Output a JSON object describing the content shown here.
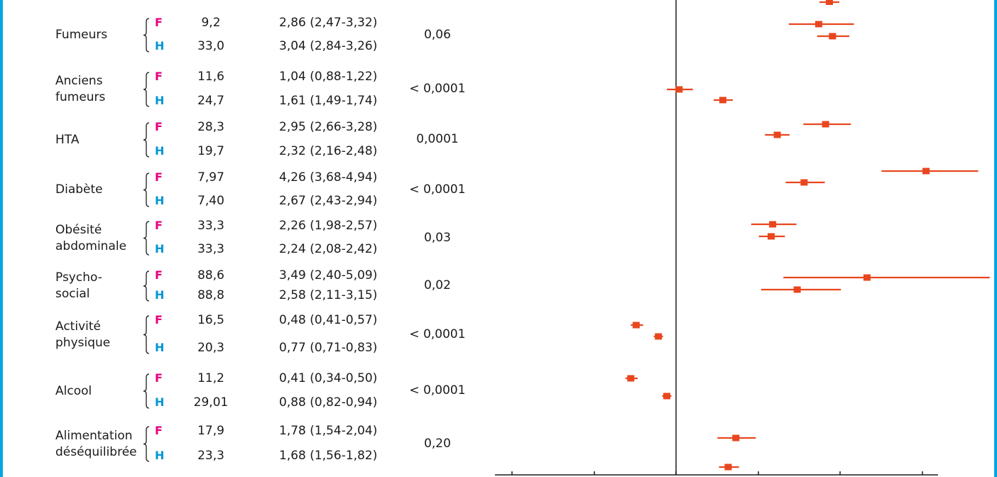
{
  "chart_data": {
    "type": "forest",
    "reference_line": 1,
    "axis_max": 3.5,
    "groups": [
      {
        "label_lines": [
          "Fumeurs"
        ],
        "p": "0,06",
        "rows": [
          {
            "sex": "F",
            "prev": "9,2",
            "or_text": "2,86 (2,47-3,32)",
            "or": 2.86,
            "lo": 2.47,
            "hi": 3.32
          },
          {
            "sex": "H",
            "prev": "33,0",
            "or_text": "3,04 (2,84-3,26)",
            "or": 3.04,
            "lo": 2.84,
            "hi": 3.26
          }
        ]
      },
      {
        "label_lines": [
          "Anciens",
          "fumeurs"
        ],
        "p": "< 0,0001",
        "rows": [
          {
            "sex": "F",
            "prev": "11,6",
            "or_text": "1,04 (0,88-1,22)",
            "or": 1.04,
            "lo": 0.88,
            "hi": 1.22
          },
          {
            "sex": "H",
            "prev": "24,7",
            "or_text": "1,61 (1,49-1,74)",
            "or": 1.61,
            "lo": 1.49,
            "hi": 1.74
          }
        ]
      },
      {
        "label_lines": [
          "HTA"
        ],
        "p": "0,0001",
        "rows": [
          {
            "sex": "F",
            "prev": "28,3",
            "or_text": "2,95 (2,66-3,28)",
            "or": 2.95,
            "lo": 2.66,
            "hi": 3.28
          },
          {
            "sex": "H",
            "prev": "19,7",
            "or_text": "2,32 (2,16-2,48)",
            "or": 2.32,
            "lo": 2.16,
            "hi": 2.48
          }
        ]
      },
      {
        "label_lines": [
          "Diabète"
        ],
        "p": "< 0,0001",
        "rows": [
          {
            "sex": "F",
            "prev": "7,97",
            "or_text": "4,26 (3,68-4,94)",
            "or": 4.26,
            "lo": 3.68,
            "hi": 4.94
          },
          {
            "sex": "H",
            "prev": "7,40",
            "or_text": "2,67 (2,43-2,94)",
            "or": 2.67,
            "lo": 2.43,
            "hi": 2.94
          }
        ]
      },
      {
        "label_lines": [
          "Obésité",
          "abdominale"
        ],
        "p": "0,03",
        "rows": [
          {
            "sex": "F",
            "prev": "33,3",
            "or_text": "2,26 (1,98-2,57)",
            "or": 2.26,
            "lo": 1.98,
            "hi": 2.57
          },
          {
            "sex": "H",
            "prev": "33,3",
            "or_text": "2,24 (2,08-2,42)",
            "or": 2.24,
            "lo": 2.08,
            "hi": 2.42
          }
        ]
      },
      {
        "label_lines": [
          "Psycho-",
          "social"
        ],
        "p": "0,02",
        "rows": [
          {
            "sex": "F",
            "prev": "88,6",
            "or_text": "3,49 (2,40-5,09)",
            "or": 3.49,
            "lo": 2.4,
            "hi": 5.09
          },
          {
            "sex": "H",
            "prev": "88,8",
            "or_text": "2,58 (2,11-3,15)",
            "or": 2.58,
            "lo": 2.11,
            "hi": 3.15
          }
        ]
      },
      {
        "label_lines": [
          "Activité",
          "physique"
        ],
        "p": "< 0,0001",
        "rows": [
          {
            "sex": "F",
            "prev": "16,5",
            "or_text": "0,48 (0,41-0,57)",
            "or": 0.48,
            "lo": 0.41,
            "hi": 0.57
          },
          {
            "sex": "H",
            "prev": "20,3",
            "or_text": "0,77 (0,71-0,83)",
            "or": 0.77,
            "lo": 0.71,
            "hi": 0.83
          }
        ]
      },
      {
        "label_lines": [
          "Alcool"
        ],
        "p": "< 0,0001",
        "rows": [
          {
            "sex": "F",
            "prev": "11,2",
            "or_text": "0,41 (0,34-0,50)",
            "or": 0.41,
            "lo": 0.34,
            "hi": 0.5
          },
          {
            "sex": "H",
            "prev": "29,01",
            "or_text": "0,88 (0,82-0,94)",
            "or": 0.88,
            "lo": 0.82,
            "hi": 0.94
          }
        ]
      },
      {
        "label_lines": [
          "Alimentation",
          "déséquilibrée"
        ],
        "p": "0,20",
        "rows": [
          {
            "sex": "F",
            "prev": "17,9",
            "or_text": "1,78 (1,54-2,04)",
            "or": 1.78,
            "lo": 1.54,
            "hi": 2.04
          },
          {
            "sex": "H",
            "prev": "23,3",
            "or_text": "1,68 (1,56-1,82)",
            "or": 1.68,
            "lo": 1.56,
            "hi": 1.82
          }
        ]
      }
    ],
    "extra_marker": {
      "or": 3.0
    },
    "colors": {
      "marker": "#e8461e",
      "female": "#e6007e",
      "male": "#0096d6",
      "frame": "#00a7e1"
    }
  }
}
